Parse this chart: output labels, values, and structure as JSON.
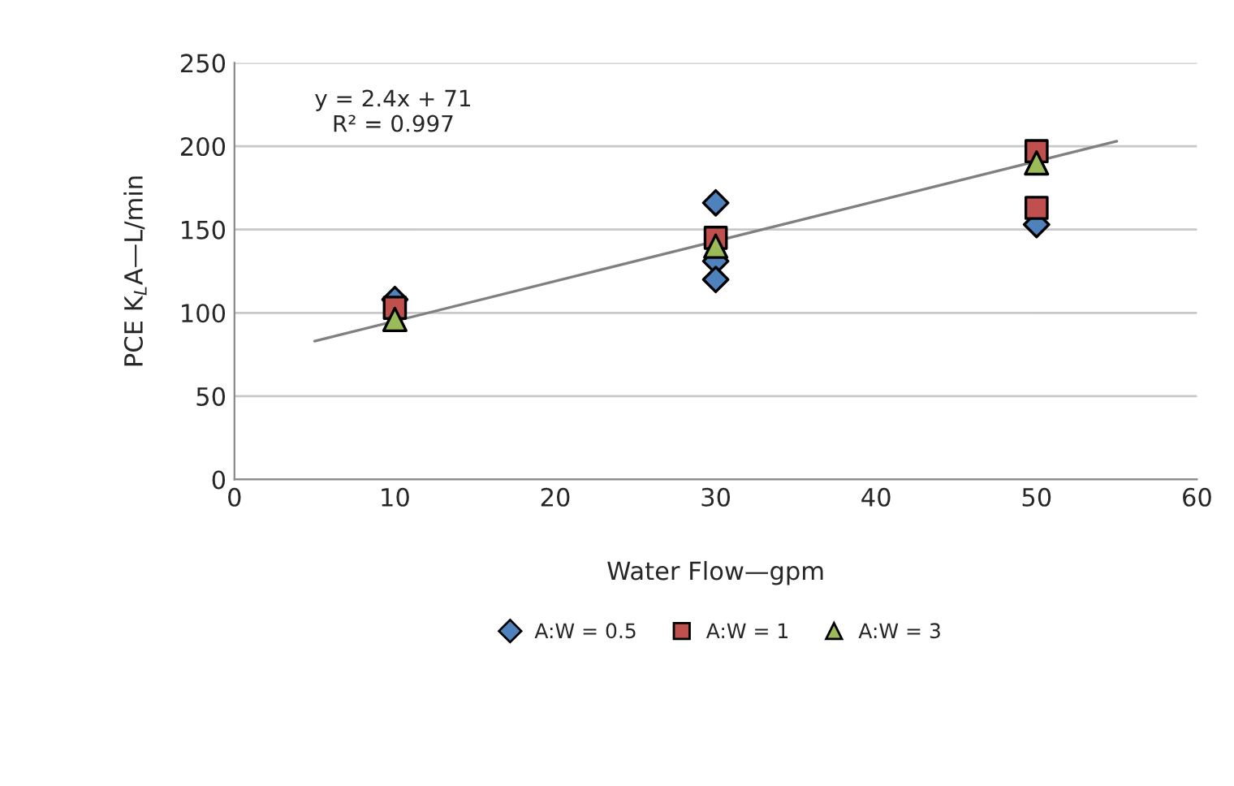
{
  "chart_data": {
    "type": "scatter",
    "xlabel": "Water Flow—gpm",
    "ylabel": "PCE K$_{L}$A—L/min",
    "xlim": [
      0,
      60
    ],
    "xticks": [
      0,
      10,
      20,
      30,
      40,
      50,
      60
    ],
    "ylim": [
      0,
      250
    ],
    "yticks": [
      0,
      50,
      100,
      150,
      200,
      250
    ],
    "grid": "y",
    "legend": "bottom",
    "annotations": [
      "y = 2.4x + 71\nR² = 0.997"
    ],
    "series": [
      {
        "name": "A:W = 0.5",
        "color": "#4f81bd",
        "marker": "diamond",
        "x": [
          10,
          30,
          30,
          30,
          50
        ],
        "values": [
          108,
          166,
          131,
          120,
          153
        ]
      },
      {
        "name": "A:W = 1",
        "color": "#c0504d",
        "marker": "square",
        "x": [
          10,
          30,
          50,
          50
        ],
        "values": [
          103,
          145,
          197,
          163
        ]
      },
      {
        "name": "A:W = 3",
        "color": "#9bbb59",
        "marker": "triangle",
        "x": [
          10,
          30,
          50
        ],
        "values": [
          96,
          140,
          190
        ]
      },
      {
        "type": "line",
        "color": "#808080",
        "marker": "none",
        "x": [
          5,
          55
        ],
        "values": [
          83,
          203
        ]
      }
    ]
  }
}
